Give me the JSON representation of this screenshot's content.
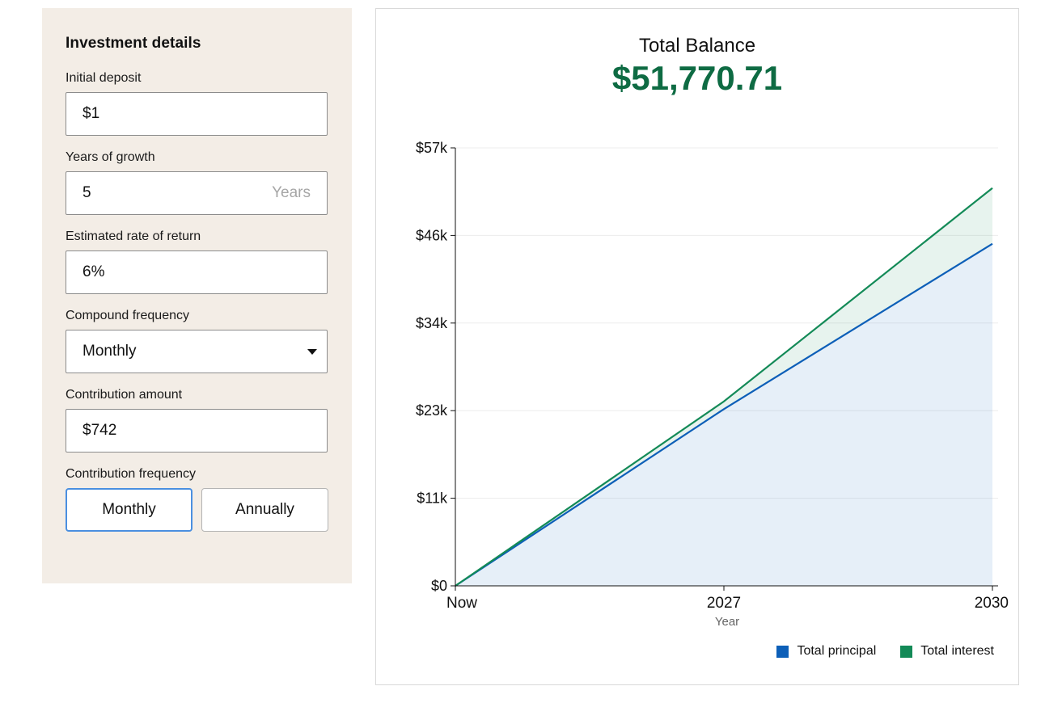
{
  "form": {
    "title": "Investment details",
    "initial_deposit": {
      "label": "Initial deposit",
      "value": "$1"
    },
    "years": {
      "label": "Years of growth",
      "value": "5",
      "suffix": "Years"
    },
    "rate": {
      "label": "Estimated rate of return",
      "value": "6%"
    },
    "compound": {
      "label": "Compound frequency",
      "value": "Monthly"
    },
    "contribution": {
      "label": "Contribution amount",
      "value": "$742"
    },
    "contribution_frequency": {
      "label": "Contribution frequency",
      "options": [
        "Monthly",
        "Annually"
      ],
      "selected": "Monthly"
    }
  },
  "summary": {
    "label": "Total Balance",
    "value": "$51,770.71"
  },
  "colors": {
    "principal": "#0d5fb8",
    "interest": "#138a57",
    "balance_text": "#0e6b43"
  },
  "chart_data": {
    "type": "area",
    "x": [
      "Now",
      "2027",
      "2030"
    ],
    "xlabel": "Year",
    "ylabel": "",
    "yticks": [
      "$0",
      "$11k",
      "$23k",
      "$34k",
      "$46k",
      "$57k"
    ],
    "ylim": [
      0,
      57000
    ],
    "series": [
      {
        "name": "Total principal",
        "values": [
          1,
          23000,
          44521
        ]
      },
      {
        "name": "Total interest",
        "values": [
          0,
          1000,
          7250
        ]
      }
    ],
    "grid": true,
    "legend": "bottom-right"
  }
}
